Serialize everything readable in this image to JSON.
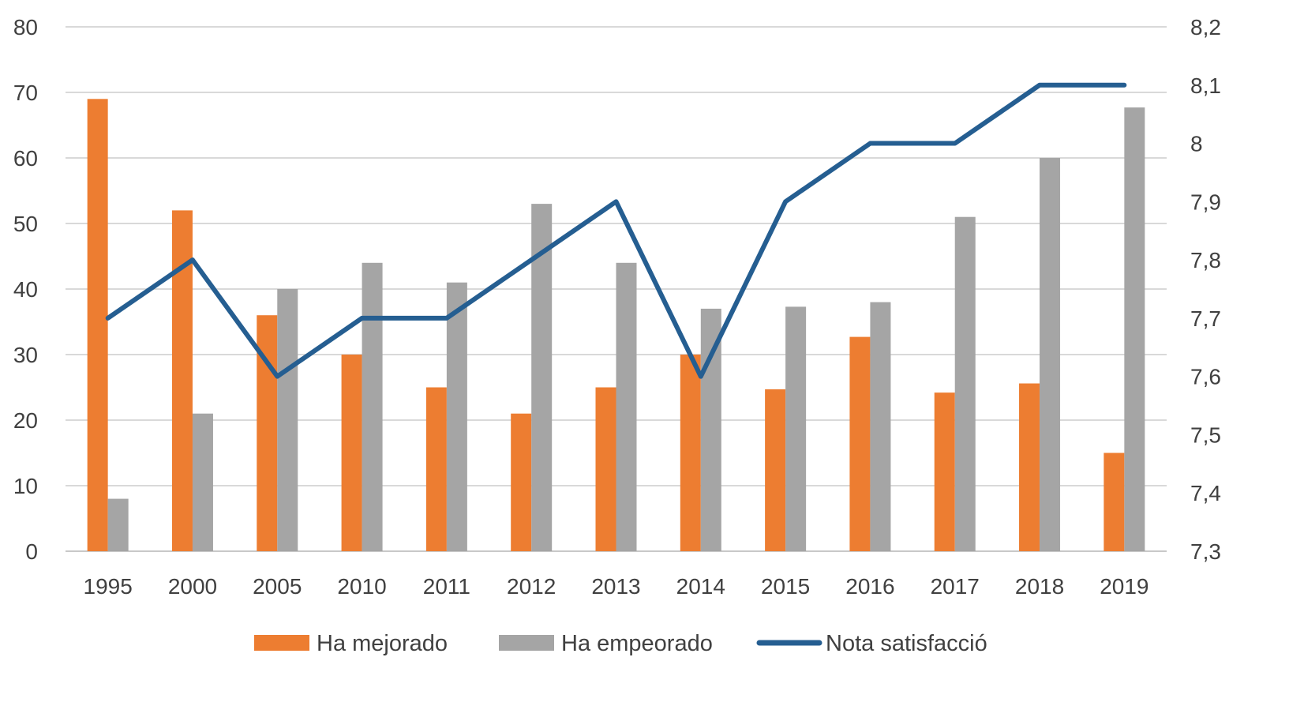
{
  "chart_data": {
    "type": "bar",
    "title": "",
    "xlabel": "",
    "ylabel": "",
    "categories": [
      "1995",
      "2000",
      "2005",
      "2010",
      "2011",
      "2012",
      "2013",
      "2014",
      "2015",
      "2016",
      "2017",
      "2018",
      "2019"
    ],
    "series": [
      {
        "name": "Ha mejorado",
        "kind": "bar",
        "axis": "left",
        "color": "#ED7D31",
        "values": [
          69,
          52,
          36,
          30,
          25,
          21,
          25,
          30,
          24.7,
          32.7,
          24.2,
          25.6,
          15
        ]
      },
      {
        "name": "Ha empeorado",
        "kind": "bar",
        "axis": "left",
        "color": "#A5A5A5",
        "values": [
          8,
          21,
          40,
          44,
          41,
          53,
          44,
          37,
          37.3,
          38,
          51,
          60,
          67.7
        ]
      },
      {
        "name": "Nota satisfacció",
        "kind": "line",
        "axis": "right",
        "color": "#255E91",
        "values": [
          7.7,
          7.8,
          7.6,
          7.7,
          7.7,
          7.8,
          7.9,
          7.6,
          7.9,
          8.0,
          8.0,
          8.1,
          8.1
        ]
      }
    ],
    "ylim": [
      0,
      80
    ],
    "yticks": [
      "0",
      "10",
      "20",
      "30",
      "40",
      "50",
      "60",
      "70",
      "80"
    ],
    "y2lim": [
      7.3,
      8.2
    ],
    "y2ticks": [
      "7,3",
      "7,4",
      "7,5",
      "7,6",
      "7,7",
      "7,8",
      "7,9",
      "8",
      "8,1",
      "8,2"
    ],
    "grid": true,
    "legend_position": "bottom"
  }
}
